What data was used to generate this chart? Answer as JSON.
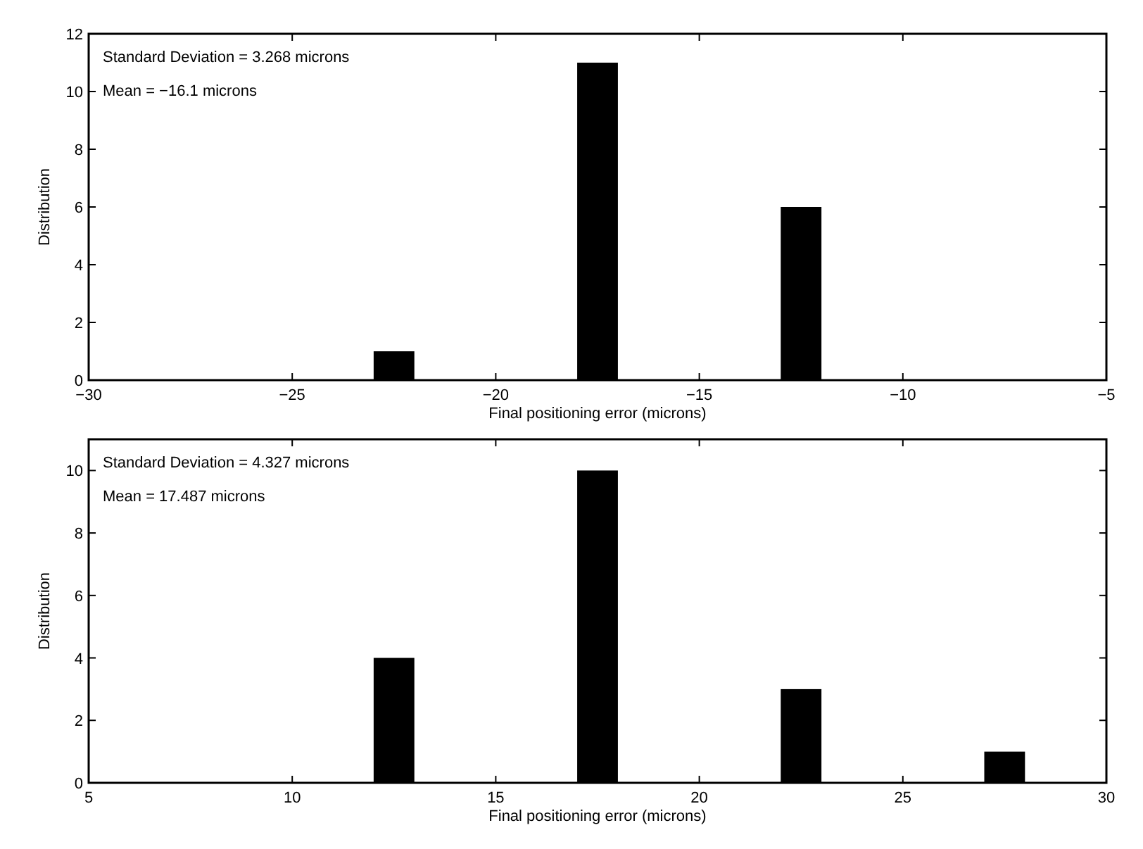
{
  "chart_data": [
    {
      "type": "bar",
      "x": [
        -22.5,
        -17.5,
        -12.5
      ],
      "values": [
        1,
        11,
        6
      ],
      "color": "#000000",
      "xlim": [
        -30,
        -5
      ],
      "xticks": [
        -30,
        -25,
        -20,
        -15,
        -10,
        -5
      ],
      "ylim": [
        0,
        12
      ],
      "yticks": [
        0,
        2,
        4,
        6,
        8,
        10,
        12
      ],
      "xlabel": "Final positioning error (microns)",
      "ylabel": "Distribution",
      "annotations": [
        "Standard Deviation = 3.268 microns",
        "Mean = −16.1 microns"
      ]
    },
    {
      "type": "bar",
      "x": [
        12.5,
        17.5,
        22.5,
        27.5
      ],
      "values": [
        4,
        10,
        3,
        1
      ],
      "color": "#000000",
      "xlim": [
        5,
        30
      ],
      "xticks": [
        5,
        10,
        15,
        20,
        25,
        30
      ],
      "ylim": [
        0,
        11
      ],
      "yticks": [
        0,
        2,
        4,
        6,
        8,
        10
      ],
      "xlabel": "Final positioning error (microns)",
      "ylabel": "Distribution",
      "annotations": [
        "Standard Deviation = 4.327 microns",
        "Mean = 17.487 microns"
      ]
    }
  ]
}
